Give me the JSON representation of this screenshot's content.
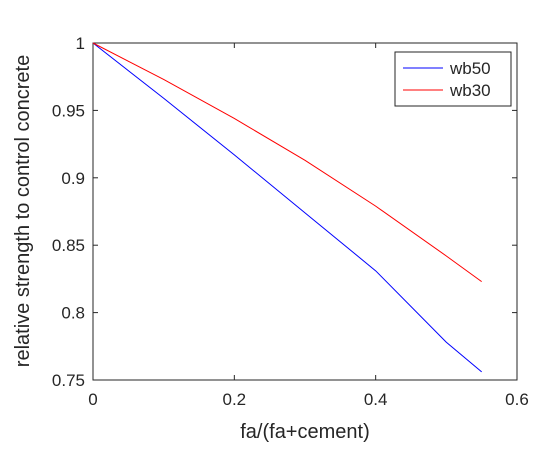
{
  "chart_data": {
    "type": "line",
    "title": "",
    "xlabel": "fa/(fa+cement)",
    "ylabel": "relative strength to control concrete",
    "xlim": [
      0,
      0.6
    ],
    "ylim": [
      0.75,
      1
    ],
    "xticks": [
      0,
      0.2,
      0.4,
      0.6
    ],
    "xtick_labels": [
      "0",
      "0.2",
      "0.4",
      "0.6"
    ],
    "yticks": [
      0.75,
      0.8,
      0.85,
      0.9,
      0.95,
      1
    ],
    "ytick_labels": [
      "0.75",
      "0.8",
      "0.85",
      "0.9",
      "0.95",
      "1"
    ],
    "grid": false,
    "legend_position": "top-right",
    "series": [
      {
        "name": "wb50",
        "color": "#0000ff",
        "x": [
          0,
          0.1,
          0.2,
          0.3,
          0.4,
          0.5,
          0.55
        ],
        "y": [
          1,
          0.959,
          0.917,
          0.874,
          0.831,
          0.778,
          0.756
        ]
      },
      {
        "name": "wb30",
        "color": "#ff0000",
        "x": [
          0,
          0.1,
          0.2,
          0.3,
          0.4,
          0.5,
          0.55
        ],
        "y": [
          1,
          0.973,
          0.944,
          0.913,
          0.879,
          0.842,
          0.823
        ]
      }
    ]
  }
}
